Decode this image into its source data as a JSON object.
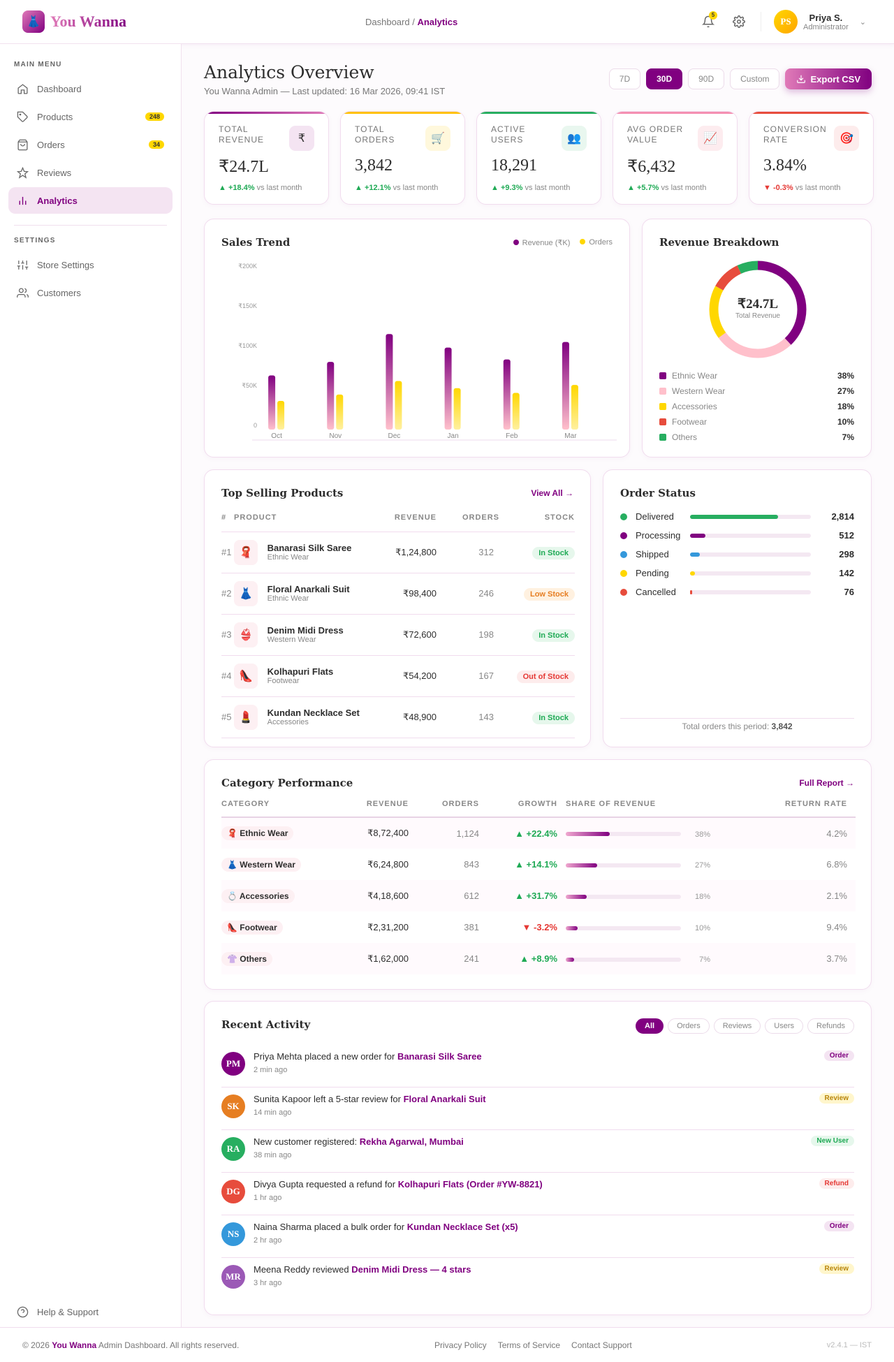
{
  "header": {
    "brand": "You Wanna",
    "breadcrumb": [
      "Dashboard",
      "Analytics"
    ],
    "notifications": "5",
    "user": {
      "initials": "PS",
      "name": "Priya S.",
      "role": "Administrator"
    }
  },
  "sidebar": {
    "main_label": "MAIN MENU",
    "items": [
      {
        "label": "Dashboard",
        "icon": "home-icon"
      },
      {
        "label": "Products",
        "icon": "tag-icon",
        "count": "248"
      },
      {
        "label": "Orders",
        "icon": "bag-icon",
        "count": "34"
      },
      {
        "label": "Reviews",
        "icon": "star-icon"
      },
      {
        "label": "Analytics",
        "icon": "chart-icon",
        "active": true
      }
    ],
    "settings_label": "SETTINGS",
    "settings": [
      {
        "label": "Store Settings",
        "icon": "sliders-icon"
      },
      {
        "label": "Customers",
        "icon": "users-icon"
      }
    ],
    "help": "Help & Support"
  },
  "page": {
    "title": "Analytics Overview",
    "subtitle": "You Wanna Admin — Last updated: 16 Mar 2026, 09:41 IST",
    "ranges": [
      "7D",
      "30D",
      "90D",
      "Custom"
    ],
    "active_range": "30D",
    "export": "Export CSV"
  },
  "kpis": [
    {
      "label": "TOTAL REVENUE",
      "value": "₹24.7L",
      "change": "▲ +18.4%",
      "note": "vs last month",
      "icon": "₹",
      "color": "#800080",
      "dir": "up"
    },
    {
      "label": "TOTAL ORDERS",
      "value": "3,842",
      "change": "▲ +12.1%",
      "note": "vs last month",
      "icon": "🛒",
      "color": "#ffc107",
      "dir": "up"
    },
    {
      "label": "ACTIVE USERS",
      "value": "18,291",
      "change": "▲ +9.3%",
      "note": "vs last month",
      "icon": "👥",
      "color": "#27ae60",
      "dir": "up"
    },
    {
      "label": "AVG ORDER VALUE",
      "value": "₹6,432",
      "change": "▲ +5.7%",
      "note": "vs last month",
      "icon": "📈",
      "color": "#f48fb1",
      "dir": "up"
    },
    {
      "label": "CONVERSION RATE",
      "value": "3.84%",
      "change": "▼ -0.3%",
      "note": "vs last month",
      "icon": "🎯",
      "color": "#e74c3c",
      "dir": "down"
    }
  ],
  "chart_data": [
    {
      "type": "bar",
      "title": "Sales Trend",
      "categories": [
        "Oct",
        "Nov",
        "Dec",
        "Jan",
        "Feb",
        "Mar"
      ],
      "yticks": [
        "₹200K",
        "₹150K",
        "₹100K",
        "₹50K",
        "0"
      ],
      "ylim": [
        0,
        200
      ],
      "legend_position": "top-right",
      "series": [
        {
          "name": "Revenue (₹K)",
          "color": "#800080",
          "values": [
            68,
            85,
            120,
            103,
            88,
            110
          ]
        },
        {
          "name": "Orders",
          "color": "#ffd700",
          "values": [
            36,
            44,
            61,
            52,
            46,
            56
          ]
        }
      ]
    },
    {
      "type": "pie",
      "title": "Revenue Breakdown",
      "center_value": "₹24.7L",
      "center_label": "Total Revenue",
      "slices": [
        {
          "name": "Ethnic Wear",
          "value": 38,
          "label": "38%",
          "color": "#800080"
        },
        {
          "name": "Western Wear",
          "value": 27,
          "label": "27%",
          "color": "#ffc0cb"
        },
        {
          "name": "Accessories",
          "value": 18,
          "label": "18%",
          "color": "#ffd700"
        },
        {
          "name": "Footwear",
          "value": 10,
          "label": "10%",
          "color": "#e74c3c"
        },
        {
          "name": "Others",
          "value": 7,
          "label": "7%",
          "color": "#27ae60"
        }
      ]
    }
  ],
  "top_products": {
    "title": "Top Selling Products",
    "link": "View All →",
    "columns": [
      "#",
      "PRODUCT",
      "REVENUE",
      "ORDERS",
      "STOCK"
    ],
    "rows": [
      {
        "rank": "#1",
        "icon": "🧣",
        "name": "Banarasi Silk Saree",
        "cat": "Ethnic Wear",
        "revenue": "₹1,24,800",
        "orders": "312",
        "stock": "In Stock",
        "s": "in"
      },
      {
        "rank": "#2",
        "icon": "👗",
        "name": "Floral Anarkali Suit",
        "cat": "Ethnic Wear",
        "revenue": "₹98,400",
        "orders": "246",
        "stock": "Low Stock",
        "s": "low"
      },
      {
        "rank": "#3",
        "icon": "👙",
        "name": "Denim Midi Dress",
        "cat": "Western Wear",
        "revenue": "₹72,600",
        "orders": "198",
        "stock": "In Stock",
        "s": "in"
      },
      {
        "rank": "#4",
        "icon": "👠",
        "name": "Kolhapuri Flats",
        "cat": "Footwear",
        "revenue": "₹54,200",
        "orders": "167",
        "stock": "Out of Stock",
        "s": "out"
      },
      {
        "rank": "#5",
        "icon": "💄",
        "name": "Kundan Necklace Set",
        "cat": "Accessories",
        "revenue": "₹48,900",
        "orders": "143",
        "stock": "In Stock",
        "s": "in"
      }
    ]
  },
  "order_status": {
    "title": "Order Status",
    "items": [
      {
        "label": "Delivered",
        "value": "2,814",
        "pct": 73,
        "color": "#27ae60"
      },
      {
        "label": "Processing",
        "value": "512",
        "pct": 13,
        "color": "#800080"
      },
      {
        "label": "Shipped",
        "value": "298",
        "pct": 8,
        "color": "#3498db"
      },
      {
        "label": "Pending",
        "value": "142",
        "pct": 4,
        "color": "#ffd700"
      },
      {
        "label": "Cancelled",
        "value": "76",
        "pct": 2,
        "color": "#e74c3c"
      }
    ],
    "total_label": "Total orders this period:",
    "total": "3,842"
  },
  "category": {
    "title": "Category Performance",
    "link": "Full Report →",
    "columns": [
      "CATEGORY",
      "REVENUE",
      "ORDERS",
      "GROWTH",
      "SHARE OF REVENUE",
      "RETURN RATE"
    ],
    "rows": [
      {
        "icon": "🧣",
        "name": "Ethnic Wear",
        "revenue": "₹8,72,400",
        "orders": "1,124",
        "growth": "▲ +22.4%",
        "dir": "up",
        "share": 38,
        "share_label": "38%",
        "ret": "4.2%"
      },
      {
        "icon": "👗",
        "name": "Western Wear",
        "revenue": "₹6,24,800",
        "orders": "843",
        "growth": "▲ +14.1%",
        "dir": "up",
        "share": 27,
        "share_label": "27%",
        "ret": "6.8%"
      },
      {
        "icon": "💍",
        "name": "Accessories",
        "revenue": "₹4,18,600",
        "orders": "612",
        "growth": "▲ +31.7%",
        "dir": "up",
        "share": 18,
        "share_label": "18%",
        "ret": "2.1%"
      },
      {
        "icon": "👠",
        "name": "Footwear",
        "revenue": "₹2,31,200",
        "orders": "381",
        "growth": "▼ -3.2%",
        "dir": "down",
        "share": 10,
        "share_label": "10%",
        "ret": "9.4%"
      },
      {
        "icon": "👚",
        "name": "Others",
        "revenue": "₹1,62,000",
        "orders": "241",
        "growth": "▲ +8.9%",
        "dir": "up",
        "share": 7,
        "share_label": "7%",
        "ret": "3.7%"
      }
    ]
  },
  "activity": {
    "title": "Recent Activity",
    "filters": [
      "All",
      "Orders",
      "Reviews",
      "Users",
      "Refunds"
    ],
    "items": [
      {
        "initials": "PM",
        "color": "#800080",
        "text": "Priya Mehta placed a new order for ",
        "link": "Banarasi Silk Saree",
        "time": "2 min ago",
        "tag": "Order",
        "tc": "#800080",
        "tb": "#f4e4f2"
      },
      {
        "initials": "SK",
        "color": "#e67e22",
        "text": "Sunita Kapoor left a 5-star review for ",
        "link": "Floral Anarkali Suit",
        "time": "14 min ago",
        "tag": "Review",
        "tc": "#b8860b",
        "tb": "#fff6cc"
      },
      {
        "initials": "RA",
        "color": "#27ae60",
        "text": "New customer registered: ",
        "link": "Rekha Agarwal, Mumbai",
        "time": "38 min ago",
        "tag": "New User",
        "tc": "#1faa55",
        "tb": "#e6f7ec"
      },
      {
        "initials": "DG",
        "color": "#e74c3c",
        "text": "Divya Gupta requested a refund for ",
        "link": "Kolhapuri Flats (Order #YW-8821)",
        "time": "1 hr ago",
        "tag": "Refund",
        "tc": "#e53935",
        "tb": "#fdecec"
      },
      {
        "initials": "NS",
        "color": "#3498db",
        "text": "Naina Sharma placed a bulk order for ",
        "link": "Kundan Necklace Set (x5)",
        "time": "2 hr ago",
        "tag": "Order",
        "tc": "#800080",
        "tb": "#f4e4f2"
      },
      {
        "initials": "MR",
        "color": "#9b59b6",
        "text": "Meena Reddy reviewed ",
        "link": "Denim Midi Dress — 4 stars",
        "time": "3 hr ago",
        "tag": "Review",
        "tc": "#b8860b",
        "tb": "#fff6cc"
      }
    ]
  },
  "footer": {
    "copy_pre": "© 2026 ",
    "brand": "You Wanna",
    "copy_post": " Admin Dashboard. All rights reserved.",
    "links": [
      "Privacy Policy",
      "Terms of Service",
      "Contact Support"
    ],
    "version": "v2.4.1 — IST"
  }
}
